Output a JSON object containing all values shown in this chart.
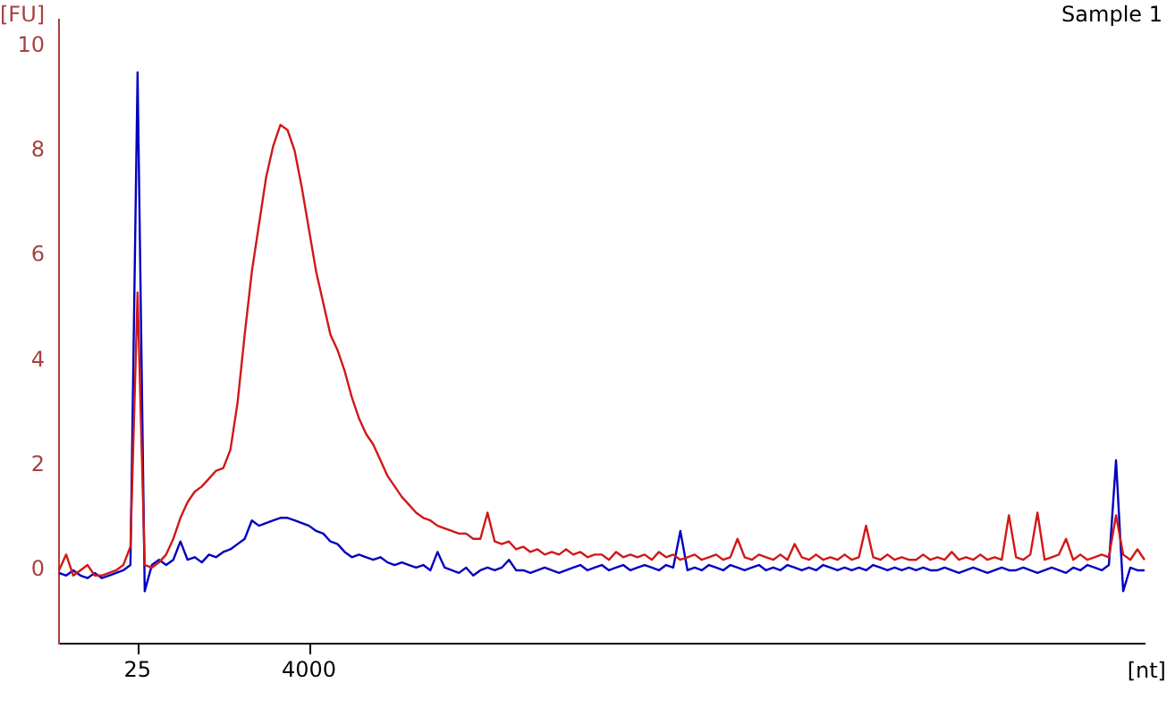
{
  "chart_data": {
    "type": "line",
    "title": "Sample 1",
    "ylabel": "[FU]",
    "xlabel": "[nt]",
    "categories": [
      null,
      null,
      null,
      null,
      null,
      null,
      null,
      null,
      null,
      null,
      null,
      "25",
      null,
      null,
      null,
      null,
      null,
      null,
      null,
      null,
      null,
      null,
      null,
      null,
      null,
      null,
      null,
      null,
      null,
      null,
      null,
      null,
      null,
      null,
      null,
      "4000",
      null,
      null,
      null,
      null,
      null,
      null,
      null,
      null,
      null,
      null,
      null,
      null,
      null,
      null,
      null,
      null,
      null,
      null,
      null,
      null,
      null,
      null,
      null,
      null,
      null,
      null,
      null,
      null,
      null,
      null,
      null,
      null,
      null,
      null,
      null,
      null,
      null,
      null,
      null,
      null,
      null,
      null,
      null,
      null,
      null,
      null,
      null,
      null,
      null,
      null,
      null,
      null,
      null,
      null,
      null,
      null,
      null,
      null,
      null,
      null,
      null,
      null,
      null,
      null,
      null,
      null,
      null,
      null,
      null,
      null,
      null,
      null,
      null,
      null,
      null,
      null,
      null,
      null,
      null,
      null,
      null,
      null,
      null,
      null,
      null,
      null,
      null,
      null,
      null,
      null,
      null,
      null,
      null,
      null,
      null,
      null,
      null,
      null,
      null,
      null,
      null,
      null,
      null,
      null,
      null,
      null,
      null,
      null,
      null,
      null,
      null,
      null,
      null,
      null,
      null,
      null,
      null
    ],
    "series": [
      {
        "color": "#d01818",
        "values": [
          0.0,
          0.3,
          -0.1,
          0.0,
          0.1,
          -0.1,
          -0.1,
          -0.05,
          0.0,
          0.1,
          0.45,
          5.3,
          0.1,
          0.05,
          0.15,
          0.3,
          0.6,
          1.0,
          1.3,
          1.5,
          1.6,
          1.75,
          1.9,
          1.95,
          2.3,
          3.2,
          4.5,
          5.7,
          6.6,
          7.5,
          8.1,
          8.5,
          8.4,
          8.0,
          7.3,
          6.5,
          5.7,
          5.1,
          4.5,
          4.2,
          3.8,
          3.3,
          2.9,
          2.6,
          2.4,
          2.1,
          1.8,
          1.6,
          1.4,
          1.25,
          1.1,
          1.0,
          0.95,
          0.85,
          0.8,
          0.75,
          0.7,
          0.7,
          0.6,
          0.6,
          1.1,
          0.55,
          0.5,
          0.55,
          0.4,
          0.45,
          0.35,
          0.4,
          0.3,
          0.35,
          0.3,
          0.4,
          0.3,
          0.35,
          0.25,
          0.3,
          0.3,
          0.2,
          0.35,
          0.25,
          0.3,
          0.25,
          0.3,
          0.2,
          0.35,
          0.25,
          0.3,
          0.2,
          0.25,
          0.3,
          0.2,
          0.25,
          0.3,
          0.2,
          0.25,
          0.6,
          0.25,
          0.2,
          0.3,
          0.25,
          0.2,
          0.3,
          0.2,
          0.5,
          0.25,
          0.2,
          0.3,
          0.2,
          0.25,
          0.2,
          0.3,
          0.2,
          0.25,
          0.85,
          0.25,
          0.2,
          0.3,
          0.2,
          0.25,
          0.2,
          0.2,
          0.3,
          0.2,
          0.25,
          0.2,
          0.35,
          0.2,
          0.25,
          0.2,
          0.3,
          0.2,
          0.25,
          0.2,
          1.05,
          0.25,
          0.2,
          0.3,
          1.1,
          0.2,
          0.25,
          0.3,
          0.6,
          0.2,
          0.3,
          0.2,
          0.25,
          0.3,
          0.25,
          1.05,
          0.3,
          0.2,
          0.4,
          0.2
        ]
      },
      {
        "color": "#0000c0",
        "values": [
          -0.05,
          -0.1,
          0.0,
          -0.1,
          -0.15,
          -0.05,
          -0.15,
          -0.1,
          -0.05,
          0.0,
          0.1,
          9.5,
          -0.4,
          0.1,
          0.2,
          0.1,
          0.2,
          0.55,
          0.2,
          0.25,
          0.15,
          0.3,
          0.25,
          0.35,
          0.4,
          0.5,
          0.6,
          0.95,
          0.85,
          0.9,
          0.95,
          1.0,
          1.0,
          0.95,
          0.9,
          0.85,
          0.75,
          0.7,
          0.55,
          0.5,
          0.35,
          0.25,
          0.3,
          0.25,
          0.2,
          0.25,
          0.15,
          0.1,
          0.15,
          0.1,
          0.05,
          0.1,
          0.0,
          0.35,
          0.05,
          0.0,
          -0.05,
          0.05,
          -0.1,
          0.0,
          0.05,
          0.0,
          0.05,
          0.2,
          0.0,
          0.0,
          -0.05,
          0.0,
          0.05,
          0.0,
          -0.05,
          0.0,
          0.05,
          0.1,
          0.0,
          0.05,
          0.1,
          0.0,
          0.05,
          0.1,
          0.0,
          0.05,
          0.1,
          0.05,
          0.0,
          0.1,
          0.05,
          0.75,
          0.0,
          0.05,
          0.0,
          0.1,
          0.05,
          0.0,
          0.1,
          0.05,
          0.0,
          0.05,
          0.1,
          0.0,
          0.05,
          0.0,
          0.1,
          0.05,
          0.0,
          0.05,
          0.0,
          0.1,
          0.05,
          0.0,
          0.05,
          0.0,
          0.05,
          0.0,
          0.1,
          0.05,
          0.0,
          0.05,
          0.0,
          0.05,
          0.0,
          0.05,
          0.0,
          0.0,
          0.05,
          0.0,
          -0.05,
          0.0,
          0.05,
          0.0,
          -0.05,
          0.0,
          0.05,
          0.0,
          0.0,
          0.05,
          0.0,
          -0.05,
          0.0,
          0.05,
          0.0,
          -0.05,
          0.05,
          0.0,
          0.1,
          0.05,
          0.0,
          0.1,
          2.1,
          -0.4,
          0.05,
          0.0,
          0.0
        ]
      }
    ],
    "ylim": [
      -1.4,
      10.5
    ],
    "yticks": [
      0,
      2,
      4,
      6,
      8,
      10
    ],
    "grid": false,
    "legend": false,
    "marker": "none",
    "line_style": "solid"
  }
}
